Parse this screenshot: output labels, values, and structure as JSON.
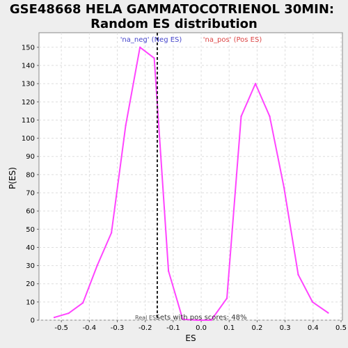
{
  "chart_data": {
    "type": "line",
    "title_line1": "GSE48668 HELA GAMMATOCOTRIENOL 30MIN:",
    "title_line2": "Random ES distribution",
    "xlabel": "ES",
    "ylabel": "P(ES)",
    "xlim": [
      -0.58,
      0.505
    ],
    "ylim": [
      0,
      158
    ],
    "x_ticks": [
      -0.5,
      -0.4,
      -0.3,
      -0.2,
      -0.1,
      0.0,
      0.1,
      0.2,
      0.3,
      0.4,
      0.5
    ],
    "x_tick_labels": [
      "-0.5",
      "-0.4",
      "-0.3",
      "-0.2",
      "-0.1",
      "0.0",
      "0.1",
      "0.2",
      "0.3",
      "0.4",
      "0.5"
    ],
    "y_ticks": [
      0,
      10,
      20,
      30,
      40,
      50,
      60,
      70,
      80,
      90,
      100,
      110,
      120,
      130,
      140,
      150
    ],
    "grid": true,
    "series": [
      {
        "color": "#ff44ff",
        "x": [
          -0.525,
          -0.474,
          -0.423,
          -0.372,
          -0.321,
          -0.27,
          -0.219,
          -0.168,
          -0.117,
          -0.066,
          -0.015,
          0.036,
          0.092,
          0.143,
          0.194,
          0.245,
          0.296,
          0.347,
          0.398,
          0.454
        ],
        "y": [
          1.5,
          3.8,
          9.5,
          30,
          48,
          107,
          150,
          144,
          27,
          0.5,
          0,
          0,
          12,
          112,
          130,
          112,
          73,
          25,
          10,
          4
        ]
      }
    ],
    "real_es": {
      "x": -0.157,
      "label": "Real ES"
    },
    "annotations": {
      "neg": {
        "text": "'na_neg' (Neg ES)",
        "color": "#4444cc"
      },
      "pos": {
        "text": "'na_pos' (Pos ES)",
        "color": "#dd4444"
      },
      "summary": "Sets with pos scores: 48%"
    }
  }
}
